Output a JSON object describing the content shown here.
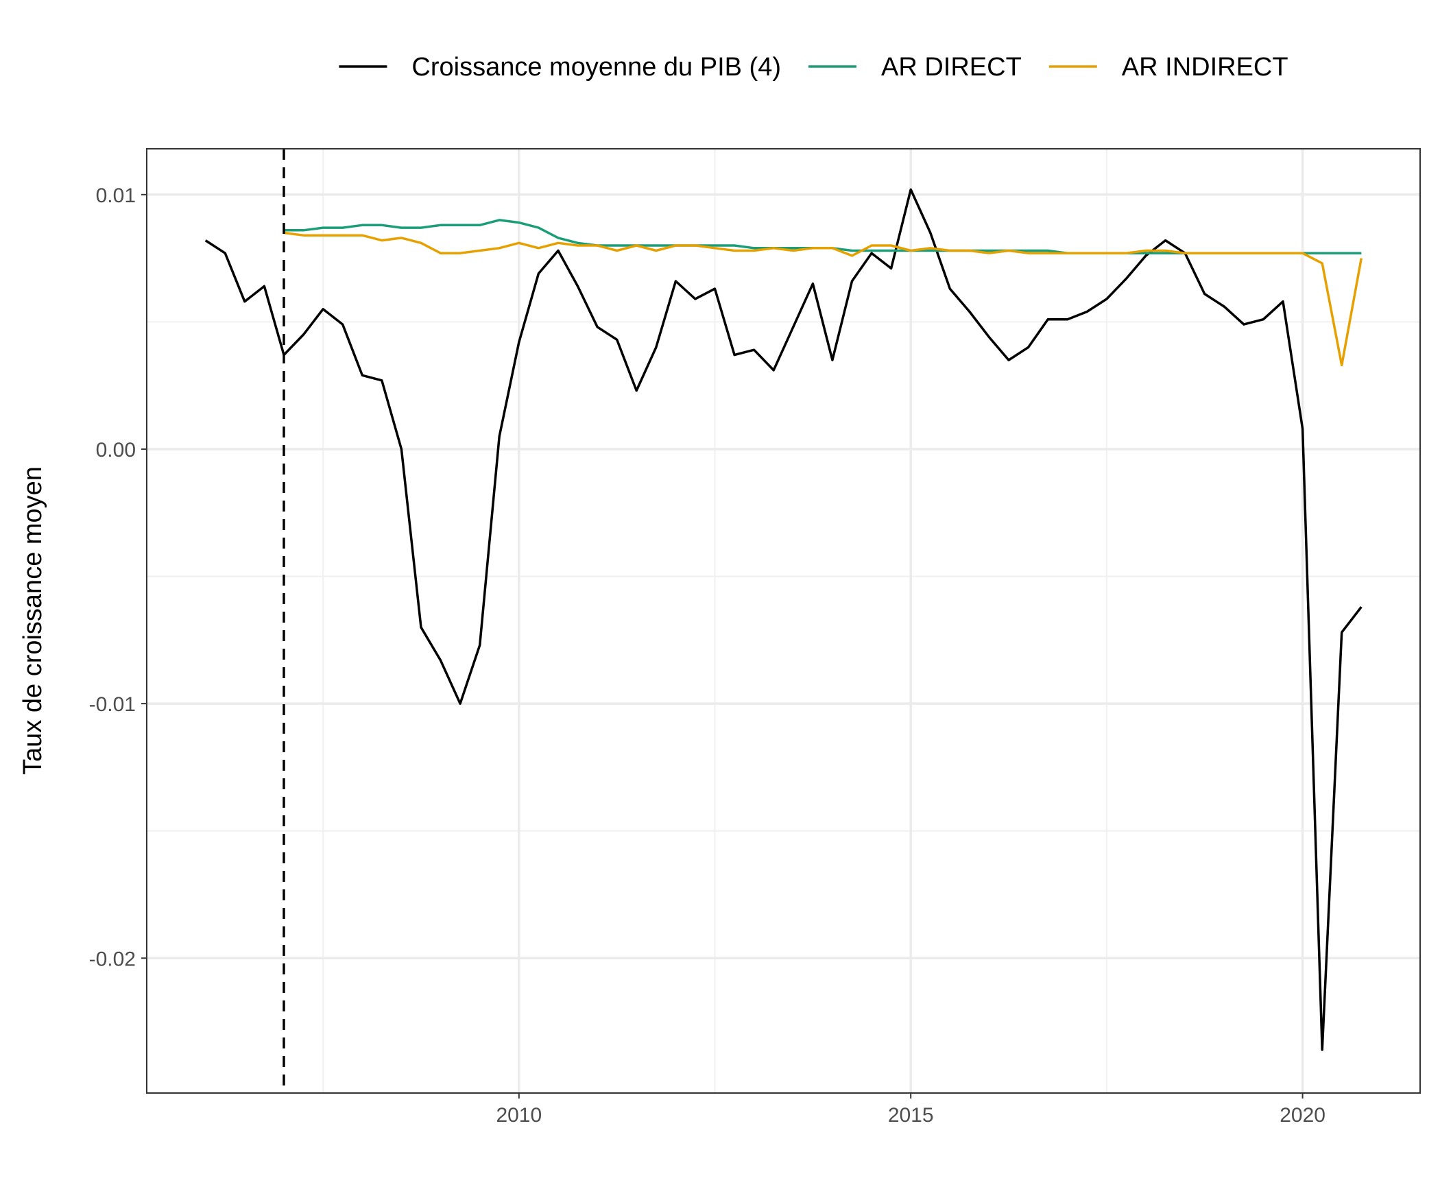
{
  "chart_data": {
    "type": "line",
    "title": "",
    "xlabel": "",
    "ylabel": "Taux de croissance moyen",
    "xlim": [
      2005.25,
      2021.5
    ],
    "ylim": [
      -0.0253,
      0.0118
    ],
    "x_ticks": [
      2010,
      2015,
      2020
    ],
    "x_tick_labels": [
      "2010",
      "2015",
      "2020"
    ],
    "y_ticks": [
      0.01,
      0.0,
      -0.01,
      -0.02
    ],
    "y_tick_labels": [
      "0.01",
      "0.00",
      "-0.01",
      "-0.02"
    ],
    "grid": true,
    "legend_position": "top",
    "vline": {
      "x": 2007.0,
      "style": "dashed",
      "color": "#000000"
    },
    "series": [
      {
        "name": "Croissance moyenne du PIB (4)",
        "color": "#000000",
        "x": [
          2006.0,
          2006.25,
          2006.5,
          2006.75,
          2007.0,
          2007.25,
          2007.5,
          2007.75,
          2008.0,
          2008.25,
          2008.5,
          2008.75,
          2009.0,
          2009.25,
          2009.5,
          2009.75,
          2010.0,
          2010.25,
          2010.5,
          2010.75,
          2011.0,
          2011.25,
          2011.5,
          2011.75,
          2012.0,
          2012.25,
          2012.5,
          2012.75,
          2013.0,
          2013.25,
          2013.5,
          2013.75,
          2014.0,
          2014.25,
          2014.5,
          2014.75,
          2015.0,
          2015.25,
          2015.5,
          2015.75,
          2016.0,
          2016.25,
          2016.5,
          2016.75,
          2017.0,
          2017.25,
          2017.5,
          2017.75,
          2018.0,
          2018.25,
          2018.5,
          2018.75,
          2019.0,
          2019.25,
          2019.5,
          2019.75,
          2020.0,
          2020.25,
          2020.5,
          2020.75
        ],
        "y": [
          0.0082,
          0.0077,
          0.0058,
          0.0064,
          0.0037,
          0.0045,
          0.0055,
          0.0049,
          0.0029,
          0.0027,
          0.0,
          -0.007,
          -0.0083,
          -0.01,
          -0.0077,
          0.0005,
          0.0042,
          0.0069,
          0.0078,
          0.0064,
          0.0048,
          0.0043,
          0.0023,
          0.004,
          0.0066,
          0.0059,
          0.0063,
          0.0037,
          0.0039,
          0.0031,
          0.0048,
          0.0065,
          0.0035,
          0.0066,
          0.0077,
          0.0071,
          0.0102,
          0.0085,
          0.0063,
          0.0054,
          0.0044,
          0.0035,
          0.004,
          0.0051,
          0.0051,
          0.0054,
          0.0059,
          0.0067,
          0.0076,
          0.0082,
          0.0077,
          0.0061,
          0.0056,
          0.0049,
          0.0051,
          0.0058,
          0.0008,
          -0.0236,
          -0.0072,
          -0.0062
        ]
      },
      {
        "name": "AR DIRECT",
        "color": "#1b9e77",
        "x": [
          2007.0,
          2007.25,
          2007.5,
          2007.75,
          2008.0,
          2008.25,
          2008.5,
          2008.75,
          2009.0,
          2009.25,
          2009.5,
          2009.75,
          2010.0,
          2010.25,
          2010.5,
          2010.75,
          2011.0,
          2011.25,
          2011.5,
          2011.75,
          2012.0,
          2012.25,
          2012.5,
          2012.75,
          2013.0,
          2013.25,
          2013.5,
          2013.75,
          2014.0,
          2014.25,
          2014.5,
          2014.75,
          2015.0,
          2015.25,
          2015.5,
          2015.75,
          2016.0,
          2016.25,
          2016.5,
          2016.75,
          2017.0,
          2017.25,
          2017.5,
          2017.75,
          2018.0,
          2018.25,
          2018.5,
          2018.75,
          2019.0,
          2019.25,
          2019.5,
          2019.75,
          2020.0,
          2020.25,
          2020.5,
          2020.75
        ],
        "y": [
          0.0086,
          0.0086,
          0.0087,
          0.0087,
          0.0088,
          0.0088,
          0.0087,
          0.0087,
          0.0088,
          0.0088,
          0.0088,
          0.009,
          0.0089,
          0.0087,
          0.0083,
          0.0081,
          0.008,
          0.008,
          0.008,
          0.008,
          0.008,
          0.008,
          0.008,
          0.008,
          0.0079,
          0.0079,
          0.0079,
          0.0079,
          0.0079,
          0.0078,
          0.0078,
          0.0078,
          0.0078,
          0.0078,
          0.0078,
          0.0078,
          0.0078,
          0.0078,
          0.0078,
          0.0078,
          0.0077,
          0.0077,
          0.0077,
          0.0077,
          0.0077,
          0.0077,
          0.0077,
          0.0077,
          0.0077,
          0.0077,
          0.0077,
          0.0077,
          0.0077,
          0.0077,
          0.0077,
          0.0077
        ]
      },
      {
        "name": "AR INDIRECT",
        "color": "#e6a000",
        "x": [
          2007.0,
          2007.25,
          2007.5,
          2007.75,
          2008.0,
          2008.25,
          2008.5,
          2008.75,
          2009.0,
          2009.25,
          2009.5,
          2009.75,
          2010.0,
          2010.25,
          2010.5,
          2010.75,
          2011.0,
          2011.25,
          2011.5,
          2011.75,
          2012.0,
          2012.25,
          2012.5,
          2012.75,
          2013.0,
          2013.25,
          2013.5,
          2013.75,
          2014.0,
          2014.25,
          2014.5,
          2014.75,
          2015.0,
          2015.25,
          2015.5,
          2015.75,
          2016.0,
          2016.25,
          2016.5,
          2016.75,
          2017.0,
          2017.25,
          2017.5,
          2017.75,
          2018.0,
          2018.25,
          2018.5,
          2018.75,
          2019.0,
          2019.25,
          2019.5,
          2019.75,
          2020.0,
          2020.25,
          2020.5,
          2020.75
        ],
        "y": [
          0.0085,
          0.0084,
          0.0084,
          0.0084,
          0.0084,
          0.0082,
          0.0083,
          0.0081,
          0.0077,
          0.0077,
          0.0078,
          0.0079,
          0.0081,
          0.0079,
          0.0081,
          0.008,
          0.008,
          0.0078,
          0.008,
          0.0078,
          0.008,
          0.008,
          0.0079,
          0.0078,
          0.0078,
          0.0079,
          0.0078,
          0.0079,
          0.0079,
          0.0076,
          0.008,
          0.008,
          0.0078,
          0.0079,
          0.0078,
          0.0078,
          0.0077,
          0.0078,
          0.0077,
          0.0077,
          0.0077,
          0.0077,
          0.0077,
          0.0077,
          0.0078,
          0.0078,
          0.0077,
          0.0077,
          0.0077,
          0.0077,
          0.0077,
          0.0077,
          0.0077,
          0.0073,
          0.0033,
          0.0075
        ]
      }
    ]
  }
}
